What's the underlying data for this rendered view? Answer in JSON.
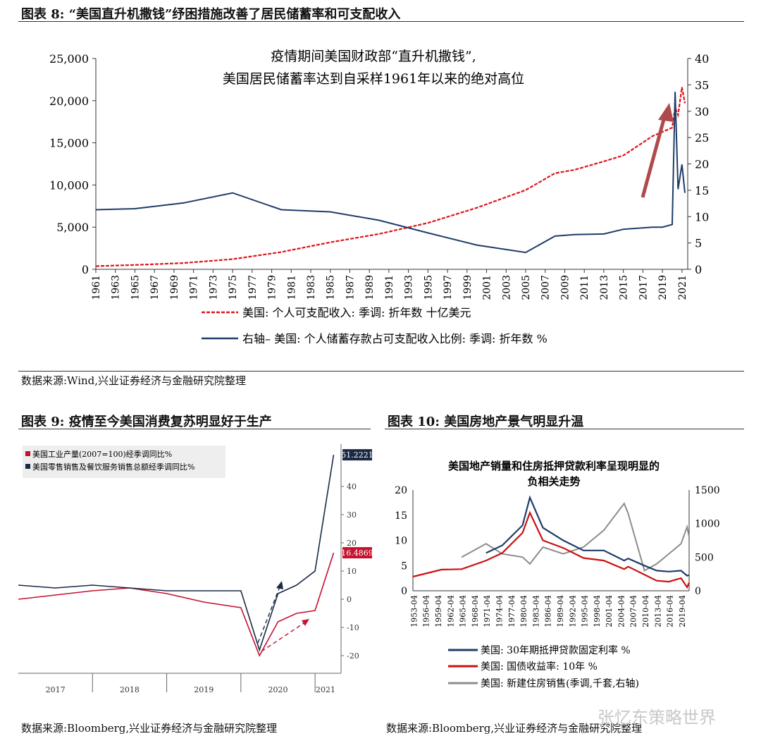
{
  "figure8": {
    "title": "图表 8: “美国直升机撒钱”纾困措施改善了居民储蓄率和可支配收入",
    "source": "数据来源:Wind,兴业证券经济与金融研究院整理",
    "annotation": [
      "疫情期间美国财政部“直升机撒钱”,",
      "美国居民储蓄率达到自采样1961年以来的绝对高位"
    ],
    "legend": [
      "美国: 个人可支配收入: 季调: 折年数  十亿美元",
      "右轴– 美国: 个人储蓄存款占可支配收入比例: 季调: 折年数  %"
    ],
    "colors": {
      "income": "#e0141b",
      "saving": "#1f3c6a",
      "arrow": "#b04a4a"
    },
    "left_ticks": [
      "0",
      "5,000",
      "10,000",
      "15,000",
      "20,000",
      "25,000"
    ],
    "right_ticks": [
      "0",
      "5",
      "10",
      "15",
      "20",
      "25",
      "30",
      "35",
      "40"
    ],
    "x_ticks": [
      "1961",
      "1963",
      "1965",
      "1967",
      "1969",
      "1971",
      "1973",
      "1975",
      "1977",
      "1979",
      "1981",
      "1983",
      "1985",
      "1987",
      "1989",
      "1991",
      "1993",
      "1995",
      "1997",
      "1999",
      "2001",
      "2003",
      "2005",
      "2007",
      "2009",
      "2011",
      "2013",
      "2015",
      "2017",
      "2019",
      "2021"
    ]
  },
  "figure9": {
    "title": "图表 9: 疫情至今美国消费复苏明显好于生产",
    "source": "数据来源:Bloomberg,兴业证券经济与金融研究院整理",
    "legend": [
      "美国工业产量(2007=100)经季调同比%",
      "美国零售销售及餐饮服务销售总额经季调同比%"
    ],
    "labels": [
      "51.2221",
      "16.4869"
    ],
    "colors": {
      "industrial": "#c4122f",
      "retail": "#1a2a44"
    },
    "y_ticks": [
      "-20",
      "-10",
      "0",
      "10",
      "20",
      "30",
      "40"
    ],
    "x_ticks": [
      "2017",
      "2018",
      "2019",
      "2020",
      "2021"
    ]
  },
  "figure10": {
    "title": "图表 10: 美国房地产景气明显升温",
    "source": "数据来源:Bloomberg,兴业证券经济与金融研究院整理",
    "chart_title": [
      "美国地产销量和住房抵押贷款利率呈现明显的",
      "负相关走势"
    ],
    "legend": [
      "美国: 30年期抵押贷款固定利率  %",
      "美国: 国债收益率: 10年  %",
      "美国: 新建住房销售(季调,千套,右轴)"
    ],
    "colors": {
      "mortgage": "#1f3c6a",
      "treasury": "#cc1010",
      "sales": "#8c8c8c"
    },
    "left_ticks": [
      "0",
      "5",
      "10",
      "15",
      "20"
    ],
    "right_ticks": [
      "0",
      "500",
      "1000",
      "1500"
    ],
    "x_ticks": [
      "1953-04",
      "1956-04",
      "1959-04",
      "1962-04",
      "1965-04",
      "1968-04",
      "1971-04",
      "1974-04",
      "1977-04",
      "1980-04",
      "1983-04",
      "1986-04",
      "1989-04",
      "1992-04",
      "1995-04",
      "1998-04",
      "2001-04",
      "2004-04",
      "2007-04",
      "2010-04",
      "2013-04",
      "2016-04",
      "2019-04"
    ]
  },
  "watermark": "张忆东策略世界",
  "chart_data": [
    {
      "type": "line",
      "x": [
        1961,
        1965,
        1970,
        1975,
        1980,
        1985,
        1990,
        1995,
        2000,
        2005,
        2008,
        2010,
        2013,
        2015,
        2018,
        2019,
        2020.0,
        2020.3,
        2020.6,
        2021.0,
        2021.3
      ],
      "series": [
        {
          "name": "美国: 个人可支配收入: 季调: 折年数  十亿美元",
          "axis": "left",
          "values": [
            380,
            520,
            740,
            1200,
            2050,
            3200,
            4200,
            5500,
            7300,
            9400,
            11400,
            11800,
            12800,
            13500,
            15800,
            16300,
            16800,
            19200,
            18300,
            21600,
            19700
          ]
        },
        {
          "name": "右轴– 美国: 个人储蓄存款占可支配收入比例: 季调: 折年数  %",
          "axis": "right",
          "values": [
            11.3,
            11.5,
            12.6,
            14.5,
            11.3,
            10.9,
            9.3,
            6.9,
            4.6,
            3.2,
            6.3,
            6.6,
            6.7,
            7.6,
            8.0,
            8.0,
            8.5,
            33.7,
            15.2,
            19.9,
            14.5
          ]
        }
      ],
      "ylim_left": [
        0,
        25000
      ],
      "ylim_right": [
        0,
        40
      ]
    },
    {
      "type": "line",
      "x": [
        2017.0,
        2017.5,
        2018.0,
        2018.5,
        2019.0,
        2019.5,
        2020.0,
        2020.25,
        2020.5,
        2020.75,
        2021.0,
        2021.25
      ],
      "series": [
        {
          "name": "美国工业产量(2007=100)经季调同比%",
          "values": [
            0,
            1.5,
            3,
            4,
            2,
            -1,
            -3,
            -20,
            -8,
            -5,
            -4,
            16.4869
          ]
        },
        {
          "name": "美国零售销售及餐饮服务销售总额经季调同比%",
          "values": [
            5,
            4,
            5,
            4,
            3,
            3,
            3,
            -18,
            2,
            5,
            10,
            51.2221
          ]
        }
      ],
      "ylim": [
        -23,
        55
      ]
    },
    {
      "type": "line",
      "x": [
        1953,
        1960,
        1965,
        1971,
        1975,
        1980,
        1981.8,
        1985,
        1990,
        1995,
        2000,
        2005,
        2006,
        2010,
        2013,
        2016,
        2019,
        2020.5,
        2021
      ],
      "series": [
        {
          "name": "美国: 30年期抵押贷款固定利率  %",
          "axis": "left",
          "values": [
            null,
            null,
            null,
            7.5,
            9,
            13,
            18.5,
            12.5,
            10,
            8,
            8,
            6,
            6.4,
            5,
            4,
            3.8,
            4,
            3,
            3.1
          ]
        },
        {
          "name": "美国: 国债收益率: 10年  %",
          "axis": "left",
          "values": [
            2.8,
            4.2,
            4.3,
            6,
            7.5,
            11.5,
            15.5,
            10,
            8.5,
            6.5,
            6,
            4.3,
            4.8,
            3.2,
            2,
            1.8,
            2.5,
            0.7,
            1.6
          ]
        },
        {
          "name": "美国: 新建住房销售(季调,千套,右轴)",
          "axis": "right",
          "values": [
            null,
            null,
            500,
            700,
            550,
            500,
            400,
            650,
            550,
            650,
            900,
            1300,
            1150,
            300,
            400,
            550,
            700,
            950,
            800
          ]
        }
      ],
      "ylim_left": [
        0,
        20
      ],
      "ylim_right": [
        0,
        1500
      ]
    }
  ]
}
